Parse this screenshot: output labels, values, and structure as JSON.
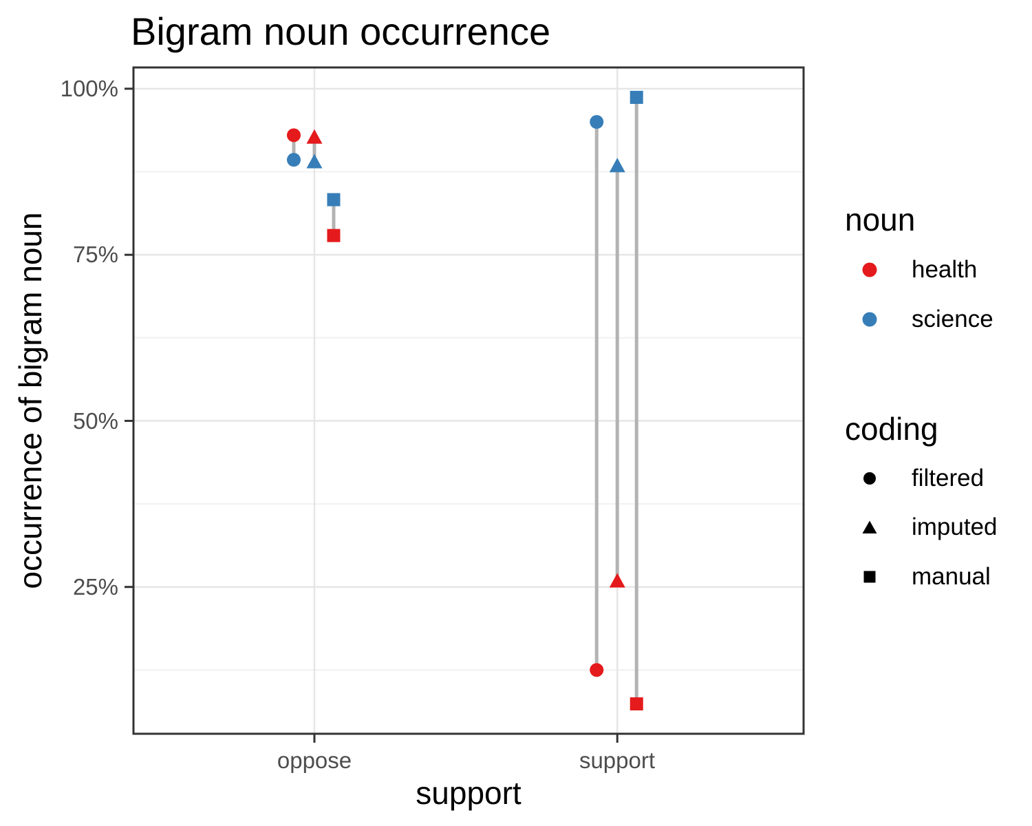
{
  "chart_data": {
    "type": "scatter",
    "title": "Bigram noun occurrence",
    "xlabel": "support",
    "ylabel": "occurrence of bigram noun",
    "x_categories": [
      "oppose",
      "support"
    ],
    "y_axis": {
      "ticks": [
        {
          "label": "100%",
          "value": 100
        },
        {
          "label": "75%",
          "value": 75
        },
        {
          "label": "50%",
          "value": 50
        },
        {
          "label": "25%",
          "value": 25
        }
      ],
      "minor": [
        87.5,
        62.5,
        37.5,
        12.5
      ],
      "ylim": [
        2.9,
        103.2
      ],
      "unit": "%"
    },
    "groups": [
      {
        "x": "oppose",
        "coding": "filtered",
        "points": [
          {
            "noun": "health",
            "value": 93.0
          },
          {
            "noun": "science",
            "value": 89.3
          }
        ]
      },
      {
        "x": "oppose",
        "coding": "imputed",
        "points": [
          {
            "noun": "health",
            "value": 92.6
          },
          {
            "noun": "science",
            "value": 88.9
          }
        ]
      },
      {
        "x": "oppose",
        "coding": "manual",
        "points": [
          {
            "noun": "science",
            "value": 83.3
          },
          {
            "noun": "health",
            "value": 77.9
          }
        ]
      },
      {
        "x": "support",
        "coding": "filtered",
        "points": [
          {
            "noun": "science",
            "value": 95.0
          },
          {
            "noun": "health",
            "value": 12.5
          }
        ]
      },
      {
        "x": "support",
        "coding": "imputed",
        "points": [
          {
            "noun": "science",
            "value": 88.3
          },
          {
            "noun": "health",
            "value": 25.8
          }
        ]
      },
      {
        "x": "support",
        "coding": "manual",
        "points": [
          {
            "noun": "science",
            "value": 98.7
          },
          {
            "noun": "health",
            "value": 7.4
          }
        ]
      }
    ],
    "colors": {
      "health": "#E41A1C",
      "science": "#377EB8",
      "shape_key": "#000000",
      "connector": "#B3B3B3",
      "grid_major": "#E6E6E6",
      "grid_minor": "#F3F3F3",
      "panel_border": "#333333",
      "tick_label": "#4D4D4D"
    },
    "legend": {
      "noun": {
        "title": "noun",
        "entries": [
          {
            "label": "health",
            "color": "#E41A1C",
            "shape": "circle"
          },
          {
            "label": "science",
            "color": "#377EB8",
            "shape": "circle"
          }
        ]
      },
      "coding": {
        "title": "coding",
        "entries": [
          {
            "label": "filtered",
            "shape": "circle"
          },
          {
            "label": "imputed",
            "shape": "triangle"
          },
          {
            "label": "manual",
            "shape": "square"
          }
        ]
      }
    },
    "layout": {
      "legend_position": "right",
      "grid": true,
      "panel_background": "#FFFFFF"
    }
  }
}
